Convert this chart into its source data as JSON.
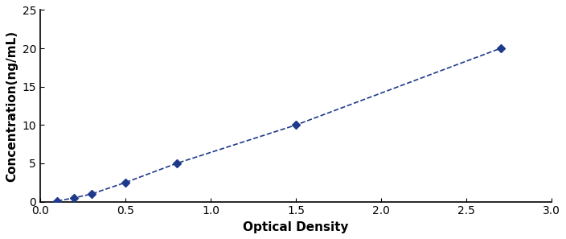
{
  "x_data": [
    0.1,
    0.2,
    0.3,
    0.5,
    0.8,
    1.5,
    2.7
  ],
  "y_data": [
    0.1,
    0.5,
    1.0,
    2.5,
    5.0,
    10.0,
    20.0
  ],
  "line_color": "#1F3A8A",
  "marker_color": "#1F3A8A",
  "marker_style": "D",
  "marker_size": 5,
  "line_width": 1.2,
  "xlabel": "Optical Density",
  "ylabel": "Concentration(ng/mL)",
  "xlim": [
    0,
    3
  ],
  "ylim": [
    0,
    25
  ],
  "xticks": [
    0,
    0.5,
    1,
    1.5,
    2,
    2.5,
    3
  ],
  "yticks": [
    0,
    5,
    10,
    15,
    20,
    25
  ],
  "xlabel_fontsize": 11,
  "ylabel_fontsize": 11,
  "tick_fontsize": 10,
  "background_color": "#ffffff",
  "plot_bg_color": "#ffffff"
}
